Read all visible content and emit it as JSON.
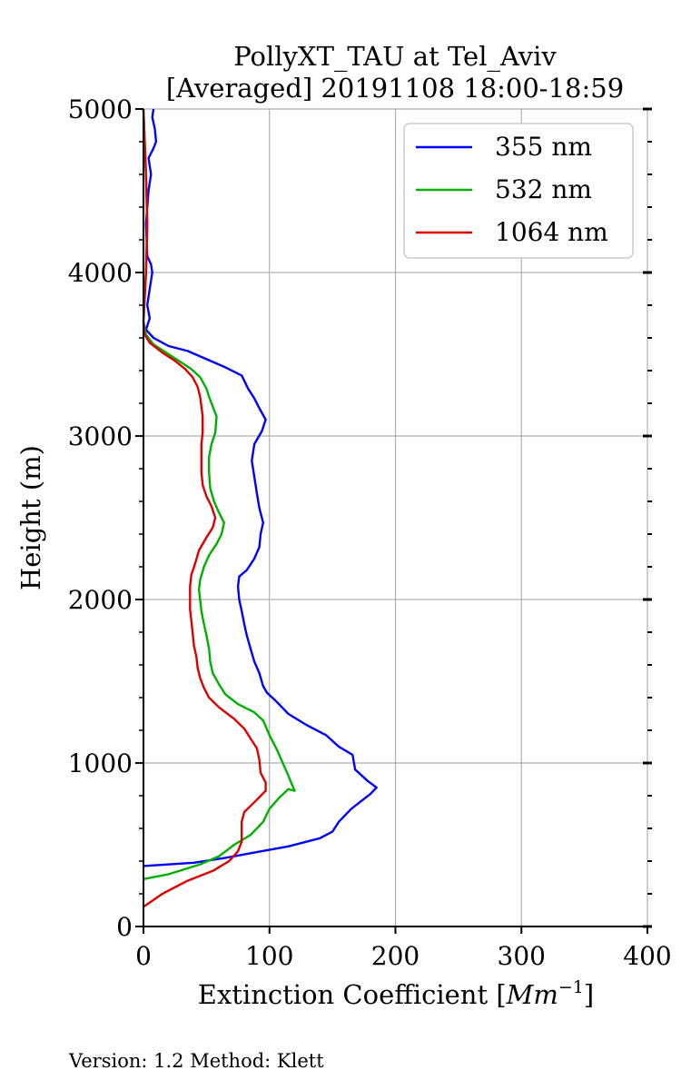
{
  "chart_data": {
    "type": "line",
    "title_line1": "PollyXT_TAU at Tel_Aviv",
    "title_line2": "[Averaged] 20191108 18:00-18:59",
    "xlabel_text": "Extinction Coefficient [",
    "xlabel_unit_base": "Mm",
    "xlabel_unit_exp": "−1",
    "xlabel_close": "]",
    "ylabel": "Height (m)",
    "xlim": [
      0,
      400
    ],
    "ylim": [
      0,
      5000
    ],
    "x_ticks": [
      0,
      100,
      200,
      300,
      400
    ],
    "y_ticks": [
      0,
      1000,
      2000,
      3000,
      4000,
      5000
    ],
    "x_tick_labels": [
      "0",
      "100",
      "200",
      "300",
      "400"
    ],
    "y_tick_labels": [
      "0",
      "1000",
      "2000",
      "3000",
      "4000",
      "5000"
    ],
    "grid": true,
    "legend_position": "top-right",
    "series": [
      {
        "name": "355 nm",
        "color": "#0000ff",
        "points": [
          [
            0,
            370
          ],
          [
            40,
            390
          ],
          [
            65,
            420
          ],
          [
            90,
            455
          ],
          [
            115,
            490
          ],
          [
            140,
            540
          ],
          [
            150,
            580
          ],
          [
            155,
            640
          ],
          [
            165,
            720
          ],
          [
            180,
            810
          ],
          [
            185,
            850
          ],
          [
            178,
            890
          ],
          [
            168,
            960
          ],
          [
            166,
            1050
          ],
          [
            155,
            1100
          ],
          [
            145,
            1170
          ],
          [
            130,
            1230
          ],
          [
            115,
            1300
          ],
          [
            105,
            1380
          ],
          [
            98,
            1430
          ],
          [
            95,
            1470
          ],
          [
            92,
            1550
          ],
          [
            88,
            1620
          ],
          [
            85,
            1700
          ],
          [
            82,
            1780
          ],
          [
            80,
            1850
          ],
          [
            78,
            1930
          ],
          [
            76,
            2000
          ],
          [
            75,
            2080
          ],
          [
            76,
            2140
          ],
          [
            82,
            2180
          ],
          [
            88,
            2250
          ],
          [
            92,
            2320
          ],
          [
            93,
            2400
          ],
          [
            95,
            2470
          ],
          [
            92,
            2560
          ],
          [
            90,
            2650
          ],
          [
            88,
            2750
          ],
          [
            86,
            2850
          ],
          [
            88,
            2950
          ],
          [
            94,
            3030
          ],
          [
            97,
            3100
          ],
          [
            92,
            3170
          ],
          [
            88,
            3230
          ],
          [
            83,
            3290
          ],
          [
            78,
            3370
          ],
          [
            65,
            3420
          ],
          [
            50,
            3470
          ],
          [
            35,
            3520
          ],
          [
            20,
            3550
          ],
          [
            8,
            3600
          ],
          [
            2,
            3650
          ],
          [
            5,
            3720
          ],
          [
            3,
            3800
          ],
          [
            5,
            3900
          ],
          [
            7,
            4000
          ],
          [
            6,
            4050
          ],
          [
            3,
            4100
          ],
          [
            2,
            4300
          ],
          [
            4,
            4500
          ],
          [
            6,
            4600
          ],
          [
            4,
            4700
          ],
          [
            8,
            4760
          ],
          [
            10,
            4800
          ],
          [
            9,
            4880
          ],
          [
            7,
            4950
          ],
          [
            8,
            5000
          ]
        ]
      },
      {
        "name": "532 nm",
        "color": "#00b000",
        "points": [
          [
            0,
            290
          ],
          [
            20,
            320
          ],
          [
            45,
            380
          ],
          [
            60,
            430
          ],
          [
            72,
            500
          ],
          [
            85,
            560
          ],
          [
            95,
            640
          ],
          [
            100,
            720
          ],
          [
            108,
            790
          ],
          [
            115,
            840
          ],
          [
            120,
            830
          ],
          [
            114,
            940
          ],
          [
            110,
            1010
          ],
          [
            106,
            1080
          ],
          [
            100,
            1170
          ],
          [
            95,
            1260
          ],
          [
            88,
            1310
          ],
          [
            75,
            1360
          ],
          [
            65,
            1420
          ],
          [
            60,
            1480
          ],
          [
            55,
            1550
          ],
          [
            53,
            1620
          ],
          [
            52,
            1700
          ],
          [
            50,
            1780
          ],
          [
            48,
            1850
          ],
          [
            46,
            1930
          ],
          [
            45,
            2000
          ],
          [
            44,
            2060
          ],
          [
            45,
            2120
          ],
          [
            48,
            2200
          ],
          [
            52,
            2270
          ],
          [
            58,
            2340
          ],
          [
            62,
            2400
          ],
          [
            64,
            2470
          ],
          [
            60,
            2530
          ],
          [
            56,
            2600
          ],
          [
            53,
            2680
          ],
          [
            52,
            2780
          ],
          [
            52,
            2870
          ],
          [
            54,
            2950
          ],
          [
            57,
            3020
          ],
          [
            58,
            3120
          ],
          [
            55,
            3180
          ],
          [
            52,
            3240
          ],
          [
            50,
            3290
          ],
          [
            45,
            3360
          ],
          [
            38,
            3410
          ],
          [
            30,
            3450
          ],
          [
            20,
            3500
          ],
          [
            8,
            3560
          ],
          [
            2,
            3620
          ],
          [
            0,
            3700
          ],
          [
            2,
            4000
          ],
          [
            3,
            4300
          ],
          [
            2,
            4600
          ],
          [
            0,
            5000
          ]
        ]
      },
      {
        "name": "1064 nm",
        "color": "#dd0000",
        "points": [
          [
            0,
            120
          ],
          [
            15,
            200
          ],
          [
            35,
            280
          ],
          [
            55,
            340
          ],
          [
            68,
            400
          ],
          [
            75,
            460
          ],
          [
            78,
            520
          ],
          [
            78,
            580
          ],
          [
            78,
            640
          ],
          [
            80,
            700
          ],
          [
            88,
            760
          ],
          [
            97,
            830
          ],
          [
            97,
            880
          ],
          [
            93,
            940
          ],
          [
            92,
            1020
          ],
          [
            90,
            1090
          ],
          [
            85,
            1150
          ],
          [
            80,
            1210
          ],
          [
            72,
            1270
          ],
          [
            60,
            1340
          ],
          [
            52,
            1400
          ],
          [
            48,
            1460
          ],
          [
            45,
            1520
          ],
          [
            43,
            1580
          ],
          [
            42,
            1650
          ],
          [
            40,
            1720
          ],
          [
            39,
            1800
          ],
          [
            38,
            1870
          ],
          [
            37,
            1940
          ],
          [
            37,
            2000
          ],
          [
            37,
            2080
          ],
          [
            38,
            2150
          ],
          [
            41,
            2220
          ],
          [
            44,
            2300
          ],
          [
            50,
            2380
          ],
          [
            55,
            2440
          ],
          [
            57,
            2500
          ],
          [
            54,
            2570
          ],
          [
            50,
            2630
          ],
          [
            47,
            2700
          ],
          [
            46,
            2780
          ],
          [
            46,
            2860
          ],
          [
            46,
            2950
          ],
          [
            47,
            3020
          ],
          [
            47,
            3120
          ],
          [
            46,
            3180
          ],
          [
            45,
            3240
          ],
          [
            43,
            3300
          ],
          [
            39,
            3360
          ],
          [
            33,
            3410
          ],
          [
            25,
            3460
          ],
          [
            15,
            3510
          ],
          [
            5,
            3570
          ],
          [
            1,
            3620
          ],
          [
            0,
            3700
          ],
          [
            2,
            4000
          ],
          [
            3,
            4300
          ],
          [
            2,
            4600
          ],
          [
            0,
            5000
          ]
        ]
      }
    ]
  },
  "footer": {
    "text": "Version: 1.2  Method: Klett"
  }
}
